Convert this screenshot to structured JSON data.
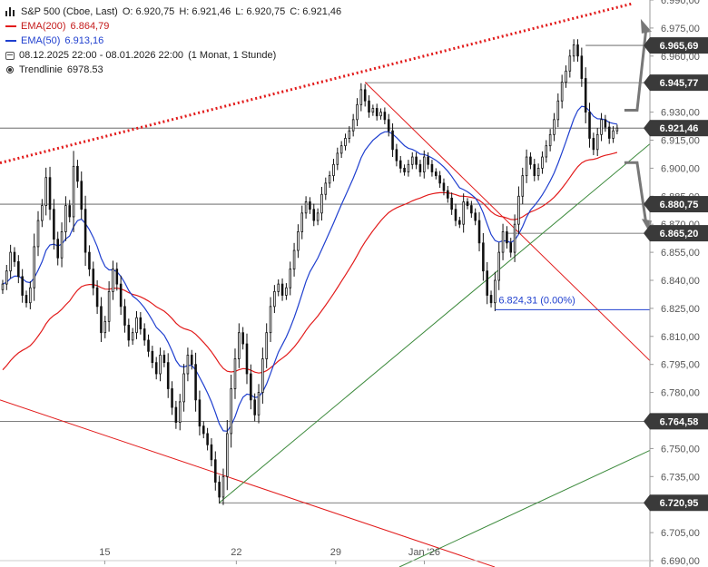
{
  "legend": {
    "instrument": "S&P 500 (Cboe, Last)",
    "open": "O: 6.920,75",
    "high": "H: 6.921,46",
    "low": "L: 6.920,75",
    "close": "C: 6.921,46",
    "ema200_label": "EMA(200)",
    "ema200_value": "6.864,79",
    "ema50_label": "EMA(50)",
    "ema50_value": "6.913,16",
    "range": "08.12.2025 22:00 - 08.01.2026 22:00",
    "interval": "(1 Monat, 1 Stunde)",
    "trend_label": "Trendlinie",
    "trend_value": "6978.53"
  },
  "colors": {
    "red": "#e21b1b",
    "blue": "#1f3fcf",
    "green": "#3c8a3c",
    "candle": "#111111",
    "dark_label": "#3a3a3a",
    "arrow": "#777777"
  },
  "chart_data": {
    "type": "candlestick",
    "title": "S&P 500 (Cboe, Last)",
    "timeframe": "1 Stunde",
    "ylim": [
      6690,
      6990
    ],
    "y_tick_labels": [
      "6.990,00",
      "6.975,00",
      "6.960,00",
      "6.945,00",
      "6.930,00",
      "6.915,00",
      "6.900,00",
      "6.885,00",
      "6.870,00",
      "6.855,00",
      "6.840,00",
      "6.825,00",
      "6.810,00",
      "6.795,00",
      "6.780,00",
      "6.765,00",
      "6.750,00",
      "6.735,00",
      "6.720,00",
      "6.705,00",
      "6.690,00"
    ],
    "y_ticks": [
      6990,
      6975,
      6960,
      6945,
      6930,
      6915,
      6900,
      6885,
      6870,
      6855,
      6840,
      6825,
      6810,
      6795,
      6780,
      6765,
      6750,
      6735,
      6720,
      6705,
      6690
    ],
    "x_tick_labels": [
      "15",
      "22",
      "29",
      "Jan '26"
    ],
    "x_ticks": [
      39,
      88,
      125,
      158
    ],
    "x_range": [
      0,
      242
    ],
    "close_series": [
      6838,
      6845,
      6855,
      6850,
      6842,
      6832,
      6828,
      6836,
      6858,
      6872,
      6880,
      6895,
      6878,
      6862,
      6852,
      6866,
      6880,
      6874,
      6901,
      6893,
      6878,
      6855,
      6846,
      6836,
      6826,
      6812,
      6818,
      6834,
      6846,
      6838,
      6826,
      6816,
      6808,
      6812,
      6820,
      6814,
      6808,
      6802,
      6796,
      6790,
      6800,
      6796,
      6782,
      6772,
      6764,
      6775,
      6790,
      6800,
      6795,
      6776,
      6762,
      6758,
      6752,
      6744,
      6732,
      6724,
      6735,
      6758,
      6782,
      6798,
      6812,
      6806,
      6790,
      6776,
      6768,
      6780,
      6798,
      6812,
      6826,
      6834,
      6838,
      6832,
      6836,
      6846,
      6856,
      6866,
      6876,
      6882,
      6878,
      6872,
      6876,
      6886,
      6892,
      6896,
      6902,
      6908,
      6912,
      6916,
      6920,
      6926,
      6934,
      6942,
      6936,
      6930,
      6932,
      6928,
      6930,
      6926,
      6920,
      6910,
      6904,
      6900,
      6898,
      6902,
      6906,
      6902,
      6898,
      6906,
      6902,
      6898,
      6896,
      6892,
      6888,
      6884,
      6878,
      6872,
      6870,
      6882,
      6880,
      6876,
      6872,
      6860,
      6845,
      6832,
      6828,
      6840,
      6855,
      6866,
      6860,
      6855,
      6870,
      6885,
      6896,
      6906,
      6902,
      6896,
      6900,
      6906,
      6912,
      6918,
      6926,
      6936,
      6946,
      6952,
      6960,
      6966,
      6960,
      6948,
      6930,
      6916,
      6910,
      6918,
      6926,
      6922,
      6916,
      6920,
      6921.46
    ],
    "ema200_end": 6864.79,
    "ema50_end": 6913.16,
    "trendline_label_value": "6978.53",
    "horizontal_levels": [
      {
        "value": 6965.69,
        "label": "6.965,69"
      },
      {
        "value": 6945.77,
        "label": "6.945,77"
      },
      {
        "value": 6921.46,
        "label": "6.921,46"
      },
      {
        "value": 6880.75,
        "label": "6.880,75"
      },
      {
        "value": 6865.2,
        "label": "6.865,20"
      },
      {
        "value": 6764.58,
        "label": "6.764,58"
      },
      {
        "value": 6720.95,
        "label": "6.720,95"
      }
    ],
    "annotation": {
      "label": "6.824,31 (0.00%)",
      "value": 6824.31
    },
    "grid": false
  }
}
